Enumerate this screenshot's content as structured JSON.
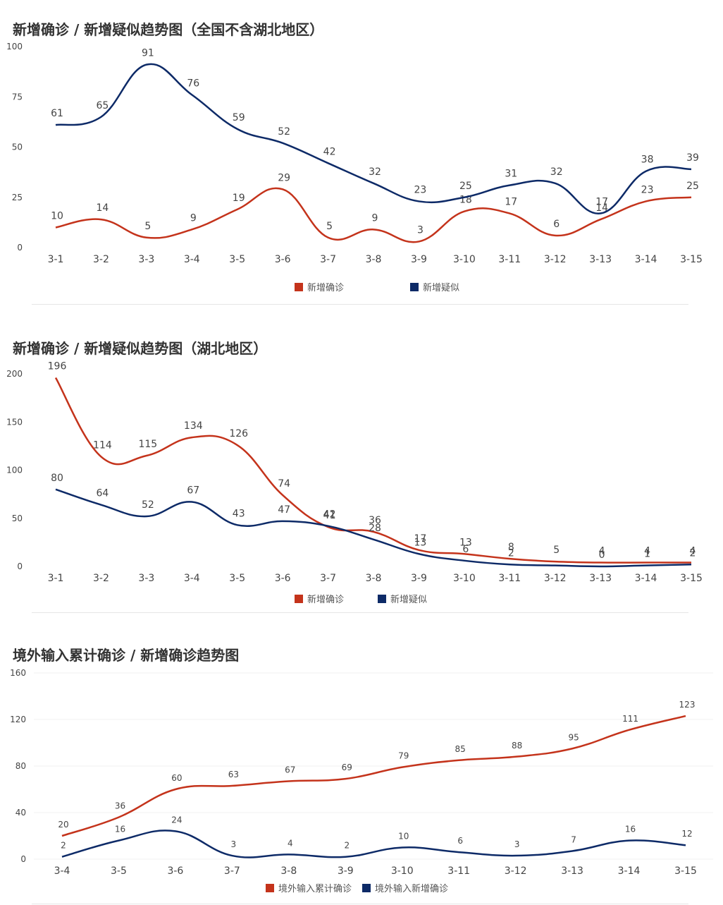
{
  "colors": {
    "red": "#c4331b",
    "navy": "#0d2a67",
    "axis_text": "#444444",
    "grid": "#f0f0f0"
  },
  "chart_data": [
    {
      "type": "line",
      "title": "新增确诊 / 新增疑似趋势图（全国不含湖北地区）",
      "categories": [
        "3-1",
        "3-2",
        "3-3",
        "3-4",
        "3-5",
        "3-6",
        "3-7",
        "3-8",
        "3-9",
        "3-10",
        "3-11",
        "3-12",
        "3-13",
        "3-14",
        "3-15"
      ],
      "yticks": [
        0,
        25,
        50,
        75,
        100
      ],
      "ylim": [
        0,
        100
      ],
      "grid": false,
      "legend_position": "bottom",
      "series": [
        {
          "name": "新增确诊",
          "color": "#c4331b",
          "values": [
            10,
            14,
            5,
            9,
            19,
            29,
            5,
            9,
            3,
            18,
            17,
            6,
            14,
            23,
            25
          ]
        },
        {
          "name": "新增疑似",
          "color": "#0d2a67",
          "values": [
            61,
            65,
            91,
            76,
            59,
            52,
            42,
            32,
            23,
            25,
            31,
            32,
            17,
            38,
            39
          ]
        }
      ]
    },
    {
      "type": "line",
      "title": "新增确诊 / 新增疑似趋势图（湖北地区）",
      "categories": [
        "3-1",
        "3-2",
        "3-3",
        "3-4",
        "3-5",
        "3-6",
        "3-7",
        "3-8",
        "3-9",
        "3-10",
        "3-11",
        "3-12",
        "3-13",
        "3-14",
        "3-15"
      ],
      "yticks": [
        0,
        50,
        100,
        150,
        200
      ],
      "ylim": [
        0,
        200
      ],
      "grid": false,
      "legend_position": "bottom",
      "series": [
        {
          "name": "新增确诊",
          "color": "#c4331b",
          "values": [
            196,
            114,
            115,
            134,
            126,
            74,
            41,
            36,
            17,
            13,
            8,
            5,
            4,
            4,
            4
          ]
        },
        {
          "name": "新增疑似",
          "color": "#0d2a67",
          "values": [
            80,
            64,
            52,
            67,
            43,
            47,
            42,
            28,
            13,
            6,
            2,
            null,
            0,
            1,
            2
          ]
        }
      ]
    },
    {
      "type": "line",
      "title": "境外输入累计确诊 / 新增确诊趋势图",
      "categories": [
        "3-4",
        "3-5",
        "3-6",
        "3-7",
        "3-8",
        "3-9",
        "3-10",
        "3-11",
        "3-12",
        "3-13",
        "3-14",
        "3-15"
      ],
      "yticks": [
        0,
        40,
        80,
        120,
        160
      ],
      "ylim": [
        0,
        160
      ],
      "grid": true,
      "legend_position": "bottom",
      "series": [
        {
          "name": "境外输入累计确诊",
          "color": "#c4331b",
          "values": [
            20,
            36,
            60,
            63,
            67,
            69,
            79,
            85,
            88,
            95,
            111,
            123
          ]
        },
        {
          "name": "境外输入新增确诊",
          "color": "#0d2a67",
          "values": [
            2,
            16,
            24,
            3,
            4,
            2,
            10,
            6,
            3,
            7,
            16,
            12
          ]
        }
      ]
    }
  ]
}
